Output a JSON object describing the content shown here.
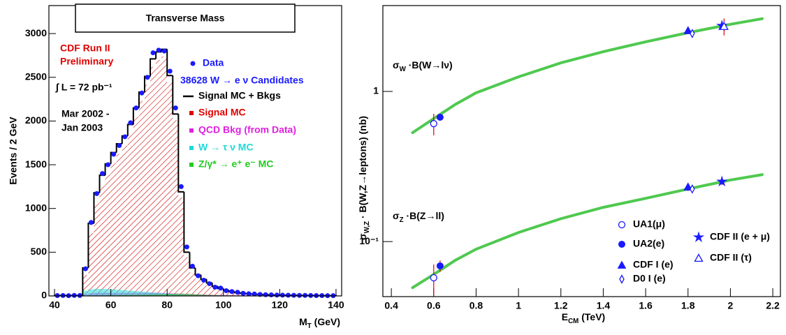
{
  "chart_data": [
    {
      "type": "histogram",
      "title": "Transverse Mass",
      "xlabel": [
        "M",
        "T",
        " (GeV)"
      ],
      "ylabel": "Events / 2 GeV",
      "xlim": [
        38,
        142
      ],
      "ylim": [
        0,
        3320
      ],
      "xticks": [
        40,
        60,
        80,
        100,
        120,
        140
      ],
      "yticks": [
        0,
        500,
        1000,
        1500,
        2000,
        2500,
        3000
      ],
      "annotations": [
        "CDF Run II",
        "Preliminary",
        "∫ L = 72 pb⁻¹",
        "Mar 2002 -",
        "Jan 2003",
        "38628 W → e ν Candidates"
      ],
      "bins": [
        40,
        42,
        44,
        46,
        48,
        50,
        52,
        54,
        56,
        58,
        60,
        62,
        64,
        66,
        68,
        70,
        72,
        74,
        76,
        78,
        80,
        82,
        84,
        86,
        88,
        90,
        92,
        94,
        96,
        98,
        100,
        102,
        104,
        106,
        108,
        110,
        112,
        114,
        116,
        118,
        120,
        122,
        124,
        126,
        128,
        130,
        132,
        134,
        136,
        138,
        140
      ],
      "series": [
        {
          "name": "Data",
          "style": "points",
          "color": "#1a1aff",
          "values": [
            4,
            5,
            3,
            6,
            5,
            310,
            840,
            1170,
            1400,
            1500,
            1620,
            1720,
            1820,
            1980,
            2150,
            2320,
            2500,
            2780,
            2810,
            2800,
            2570,
            2150,
            1250,
            560,
            340,
            230,
            180,
            140,
            100,
            90,
            60,
            50,
            42,
            30,
            25,
            22,
            17,
            14,
            12,
            10,
            9,
            8,
            7,
            6,
            6,
            5,
            4,
            4,
            3,
            3
          ]
        },
        {
          "name": "Signal MC + Bkgs",
          "style": "step",
          "color": "#000000",
          "values": [
            5,
            5,
            5,
            5,
            5,
            320,
            830,
            1180,
            1380,
            1510,
            1640,
            1740,
            1830,
            1960,
            2150,
            2330,
            2510,
            2710,
            2790,
            2820,
            2520,
            2080,
            1190,
            500,
            320,
            240,
            190,
            150,
            110,
            85,
            65,
            50,
            40,
            30,
            25,
            20,
            18,
            15,
            12,
            10,
            9,
            8,
            7,
            6,
            5,
            5,
            4,
            4,
            3,
            3
          ]
        },
        {
          "name": "Signal MC",
          "style": "hatch",
          "color": "#e00000",
          "values": [
            0,
            0,
            0,
            0,
            0,
            240,
            720,
            1060,
            1260,
            1390,
            1520,
            1625,
            1720,
            1855,
            2050,
            2230,
            2415,
            2620,
            2700,
            2740,
            2440,
            2010,
            1125,
            445,
            270,
            200,
            155,
            120,
            85,
            65,
            48,
            36,
            28,
            20,
            16,
            12,
            11,
            9,
            7,
            5,
            5,
            4,
            3,
            2,
            1,
            1,
            1,
            1,
            1,
            1
          ]
        },
        {
          "name": "QCD Bkg (from Data)",
          "style": "fill",
          "color": "#e020e0",
          "values": [
            4,
            4,
            4,
            4,
            4,
            20,
            30,
            35,
            35,
            35,
            35,
            35,
            35,
            35,
            35,
            35,
            35,
            35,
            35,
            30,
            30,
            28,
            25,
            22,
            20,
            18,
            16,
            14,
            12,
            11,
            10,
            9,
            8,
            7,
            6,
            5,
            5,
            4,
            4,
            4,
            3,
            3,
            3,
            3,
            3,
            2,
            2,
            2,
            2,
            2
          ]
        },
        {
          "name": "W → τ ν MC",
          "style": "fill",
          "color": "#20d8d8",
          "values": [
            0,
            0,
            0,
            0,
            0,
            60,
            75,
            80,
            80,
            78,
            75,
            70,
            65,
            60,
            55,
            50,
            45,
            40,
            35,
            30,
            25,
            20,
            15,
            10,
            8,
            6,
            5,
            4,
            3,
            2,
            2,
            1,
            1,
            1,
            1,
            0,
            0,
            0,
            0,
            0,
            0,
            0,
            0,
            0,
            0,
            0,
            0,
            0,
            0,
            0
          ]
        },
        {
          "name": "Z/γ* → e⁺ e⁻ MC",
          "style": "fill",
          "color": "#22cc22",
          "values": [
            1,
            1,
            1,
            1,
            1,
            3,
            4,
            5,
            6,
            7,
            8,
            9,
            10,
            11,
            12,
            13,
            14,
            16,
            18,
            20,
            22,
            24,
            26,
            25,
            22,
            18,
            15,
            12,
            10,
            8,
            6,
            5,
            4,
            3,
            3,
            2,
            2,
            2,
            1,
            1,
            1,
            1,
            1,
            1,
            1,
            1,
            1,
            0,
            0,
            0
          ]
        }
      ]
    },
    {
      "type": "scatter",
      "log_y": true,
      "xlabel": [
        "E",
        "CM",
        " (TeV)"
      ],
      "ylabel": [
        "σ",
        "W,Z",
        " · B(W,Z→leptons) (nb)"
      ],
      "xlim": [
        0.36,
        2.236
      ],
      "ylim": [
        0.043,
        3.73
      ],
      "xticks": [
        0.4,
        0.6,
        0.8,
        1,
        1.2,
        1.4,
        1.6,
        1.8,
        2,
        2.2
      ],
      "yticks": [
        {
          "value": 0.1,
          "label": "10⁻¹"
        },
        1
      ],
      "annotations": [
        [
          "σ",
          "W",
          " ·B(W→lν)"
        ],
        [
          "σ",
          "Z",
          " ·B(Z→ll)"
        ]
      ],
      "error_color": "#e00000",
      "series": [
        {
          "style": "curve",
          "color": "#4fc94f",
          "x": [
            0.5,
            0.6,
            0.7,
            0.8,
            1.0,
            1.2,
            1.4,
            1.6,
            1.8,
            2.0,
            2.15
          ],
          "values": [
            0.531,
            0.659,
            0.816,
            0.979,
            1.25,
            1.55,
            1.84,
            2.14,
            2.46,
            2.8,
            3.05
          ]
        },
        {
          "style": "curve",
          "color": "#4fc94f",
          "x": [
            0.5,
            0.6,
            0.7,
            0.8,
            1.0,
            1.2,
            1.4,
            1.6,
            1.8,
            2.0,
            2.15
          ],
          "values": [
            0.0493,
            0.0604,
            0.0748,
            0.089,
            0.115,
            0.142,
            0.169,
            0.194,
            0.224,
            0.257,
            0.279
          ]
        },
        {
          "name": "UA1(μ)",
          "marker": "open-circle",
          "color": "#1a1aff",
          "x": [
            0.6,
            0.6
          ],
          "values": [
            0.61,
            0.0574
          ],
          "errors": [
            0.1,
            0.013
          ]
        },
        {
          "name": "UA2(e)",
          "marker": "filled-circle",
          "color": "#1a1aff",
          "x": [
            0.63,
            0.63
          ],
          "values": [
            0.673,
            0.0689
          ],
          "errors": [
            0.03,
            0.006
          ]
        },
        {
          "name": "CDF I (e)",
          "marker": "triangle",
          "color": "#1a1aff",
          "x": [
            1.8,
            1.8
          ],
          "values": [
            2.54,
            0.231
          ],
          "errors": [
            0.12,
            0.014
          ]
        },
        {
          "name": "D0 I (e)",
          "marker": "open-diamond",
          "color": "#1a1aff",
          "x": [
            1.82,
            1.82
          ],
          "values": [
            2.43,
            0.224
          ],
          "errors": [
            0.11,
            0.012
          ]
        },
        {
          "name": "CDF II (e + μ)",
          "marker": "star",
          "color": "#1a1aff",
          "x": [
            1.96,
            1.96
          ],
          "values": [
            2.74,
            0.251
          ],
          "errors": [
            0.12,
            0.013
          ]
        },
        {
          "name": "CDF II (τ)",
          "marker": "open-triangle",
          "color": "#1a1aff",
          "x": [
            1.97
          ],
          "values": [
            2.71
          ],
          "errors": [
            0.35
          ]
        }
      ]
    }
  ]
}
